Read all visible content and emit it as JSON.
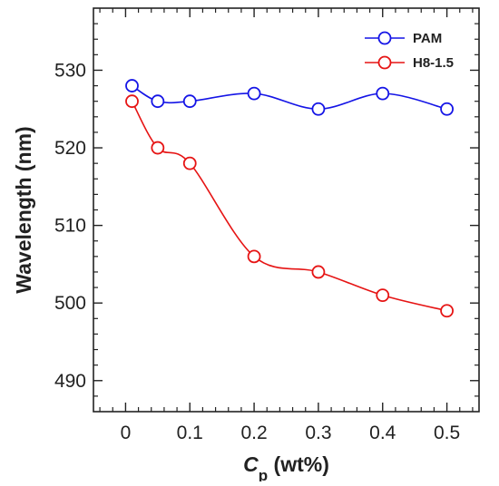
{
  "chart_data": {
    "type": "line",
    "title": "",
    "xlabel": {
      "symbol": "C",
      "subscript": "p",
      "unit": " (wt%)"
    },
    "ylabel": "Wavelength (nm)",
    "xlim": [
      -0.05,
      0.55
    ],
    "ylim": [
      486,
      538
    ],
    "xticks": [
      0,
      0.1,
      0.2,
      0.3,
      0.4,
      0.5
    ],
    "xtick_labels": [
      "0",
      "0.1",
      "0.2",
      "0.3",
      "0.4",
      "0.5"
    ],
    "xminor_step": 0.02,
    "yticks": [
      490,
      500,
      510,
      520,
      530
    ],
    "ytick_labels": [
      "490",
      "500",
      "510",
      "520",
      "530"
    ],
    "yminor_step": 2,
    "grid": false,
    "legend_position": "top-right",
    "marker": "open-circle",
    "series": [
      {
        "name": "PAM",
        "color": "#1414e6",
        "x": [
          0.01,
          0.05,
          0.1,
          0.2,
          0.3,
          0.4,
          0.5
        ],
        "y": [
          528,
          526,
          526,
          527,
          525,
          527,
          525
        ]
      },
      {
        "name": "H8-1.5",
        "color": "#e61414",
        "x": [
          0.01,
          0.05,
          0.1,
          0.2,
          0.3,
          0.4,
          0.5
        ],
        "y": [
          526,
          520,
          518,
          506,
          504,
          501,
          499
        ]
      }
    ]
  }
}
